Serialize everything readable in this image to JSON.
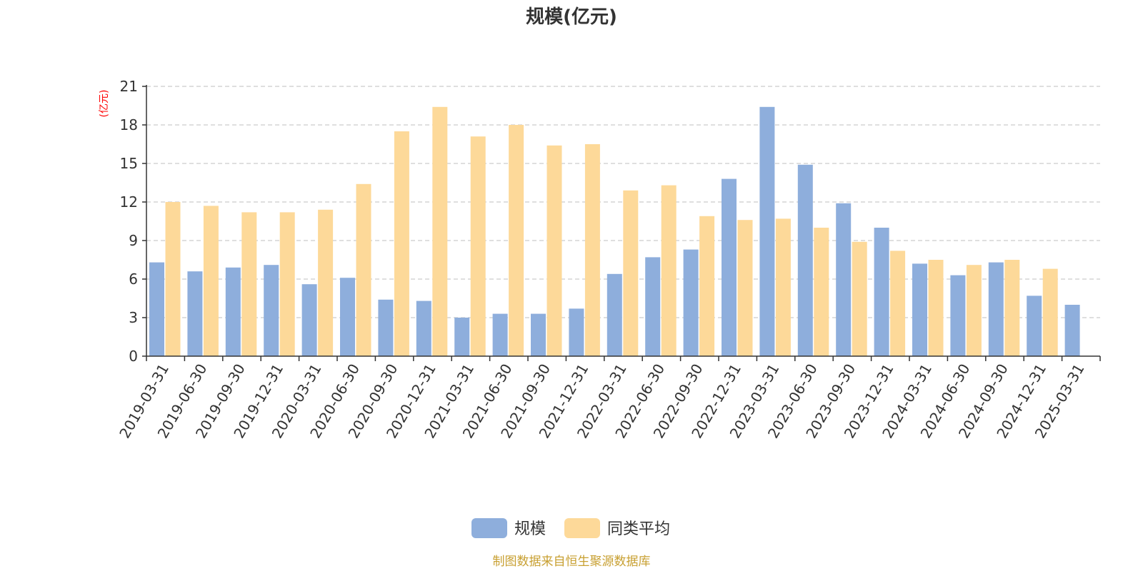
{
  "chart_data": {
    "type": "bar",
    "title": "规模(亿元)",
    "ylabel": "(亿元)",
    "xlabel": "",
    "ylim": [
      0,
      21
    ],
    "yticks": [
      0,
      3,
      6,
      9,
      12,
      15,
      18,
      21
    ],
    "grid": true,
    "legend_position": "bottom",
    "categories": [
      "2019-03-31",
      "2019-06-30",
      "2019-09-30",
      "2019-12-31",
      "2020-03-31",
      "2020-06-30",
      "2020-09-30",
      "2020-12-31",
      "2021-03-31",
      "2021-06-30",
      "2021-09-30",
      "2021-12-31",
      "2022-03-31",
      "2022-06-30",
      "2022-09-30",
      "2022-12-31",
      "2023-03-31",
      "2023-06-30",
      "2023-09-30",
      "2023-12-31",
      "2024-03-31",
      "2024-06-30",
      "2024-09-30",
      "2024-12-31",
      "2025-03-31"
    ],
    "series": [
      {
        "name": "规模",
        "color": "#8eaedc",
        "values": [
          7.3,
          6.6,
          6.9,
          7.1,
          5.6,
          6.1,
          4.4,
          4.3,
          3.0,
          3.3,
          3.3,
          3.7,
          6.4,
          7.7,
          8.3,
          13.8,
          19.4,
          14.9,
          11.9,
          10.0,
          7.2,
          6.3,
          7.3,
          4.7,
          4.0
        ]
      },
      {
        "name": "同类平均",
        "color": "#fdd999",
        "values": [
          12.0,
          11.7,
          11.2,
          11.2,
          11.4,
          13.4,
          17.5,
          19.4,
          17.1,
          18.0,
          16.4,
          16.5,
          12.9,
          13.3,
          10.9,
          10.6,
          10.7,
          10.0,
          8.9,
          8.2,
          7.5,
          7.1,
          7.5,
          6.8,
          null
        ]
      }
    ]
  },
  "footer": {
    "source": "制图数据来自恒生聚源数据库"
  },
  "colors": {
    "title": "#333333",
    "axis": "#333333",
    "grid": "#cccccc",
    "ylabel": "#ff0000",
    "source": "#c8a032"
  }
}
